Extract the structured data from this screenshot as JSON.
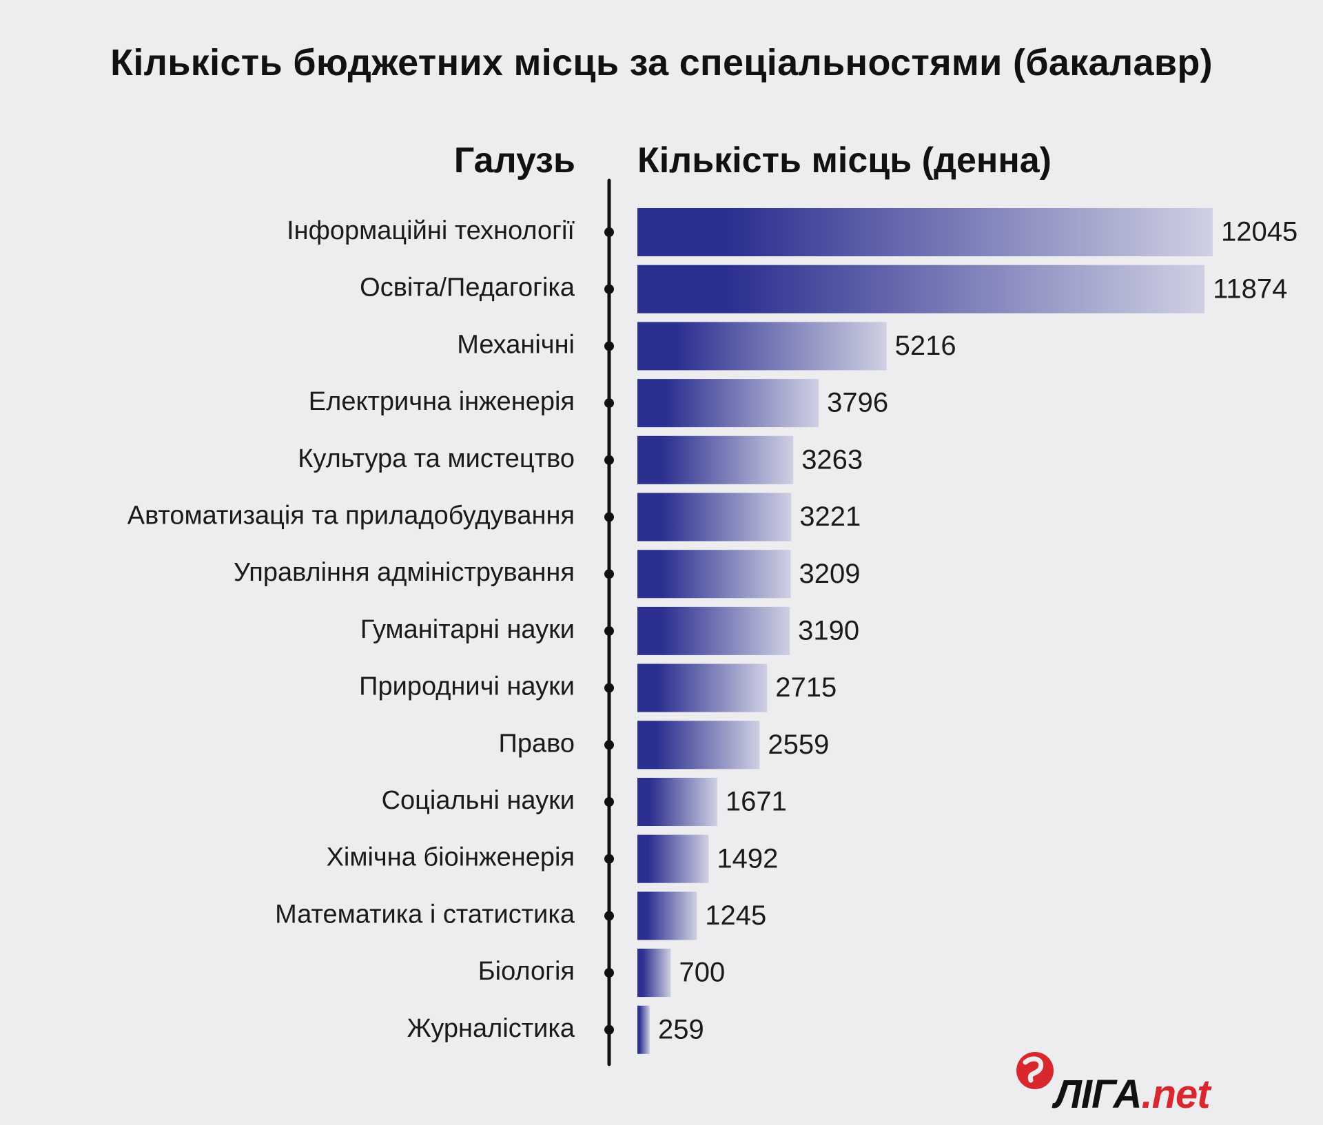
{
  "chart_data": {
    "type": "bar",
    "orientation": "horizontal",
    "title": "Кількість бюджетних місць за спеціальностями (бакалавр)",
    "category_header": "Галузь",
    "value_header": "Кількість місць (денна)",
    "categories": [
      "Інформаційні технології",
      "Освіта/Педагогіка",
      "Механічні",
      "Електрична інженерія",
      "Культура та мистецтво",
      "Автоматизація та приладобудування",
      "Управління адміністрування",
      "Гуманітарні науки",
      "Природничі науки",
      "Право",
      "Соціальні науки",
      "Хімічна біоінженерія",
      "Математика і статистика",
      "Біологія",
      "Журналістика"
    ],
    "values": [
      12045,
      11874,
      5216,
      3796,
      3263,
      3221,
      3209,
      3190,
      2715,
      2559,
      1671,
      1492,
      1245,
      700,
      259
    ],
    "xlim": [
      0,
      12045
    ],
    "grid": false,
    "legend": false,
    "colors": {
      "bar_dark": "#2b2f8f",
      "bar_light": "#cfd0e3",
      "axis": "#111111"
    }
  },
  "logo": {
    "text_main": "ЛІГА",
    "text_suffix": ".net",
    "icon": "liga-logo-icon",
    "color": "#d9272e"
  }
}
